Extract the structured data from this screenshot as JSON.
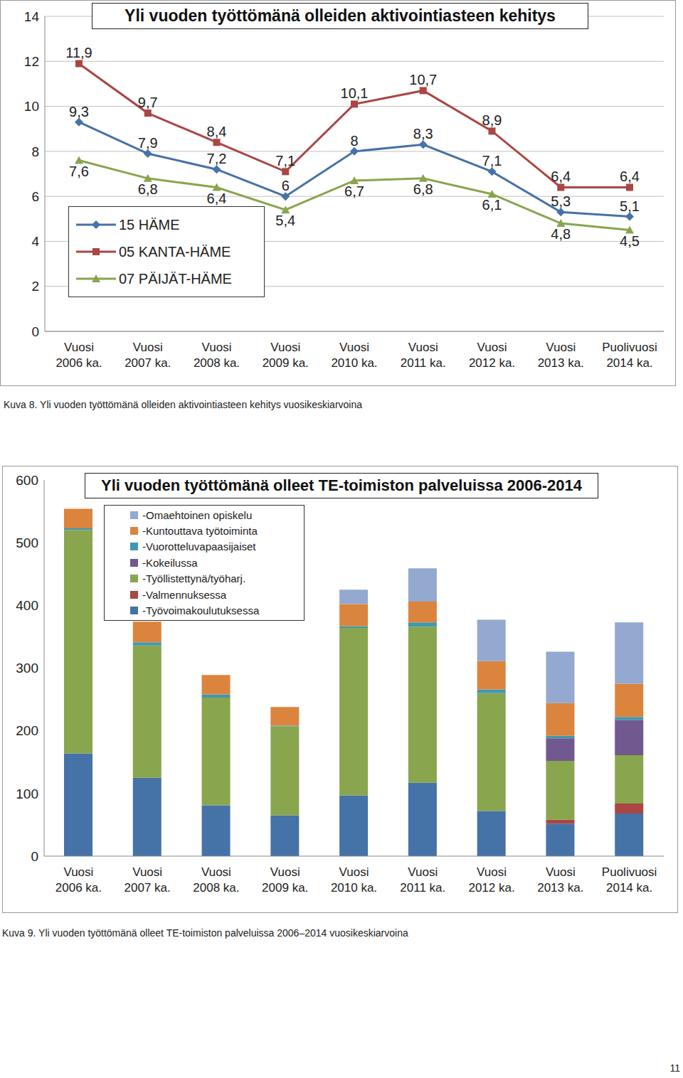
{
  "chart_data": [
    {
      "type": "line",
      "title": "Yli vuoden työttömänä olleiden aktivointiasteen kehitys",
      "caption": "Kuva 8. Yli vuoden työttömänä olleiden aktivointiasteen kehitys vuosikeskiarvoina",
      "categories": [
        "Vuosi 2006 ka.",
        "Vuosi 2007 ka.",
        "Vuosi 2008 ka.",
        "Vuosi 2009 ka.",
        "Vuosi 2010 ka.",
        "Vuosi 2011 ka.",
        "Vuosi 2012 ka.",
        "Vuosi 2013 ka.",
        "Puolivuosi 2014 ka."
      ],
      "series": [
        {
          "name": "15 HÄME",
          "color": "#4572A7",
          "marker": "diamond",
          "values": [
            9.3,
            7.9,
            7.2,
            6,
            8,
            8.3,
            7.1,
            5.3,
            5.1
          ],
          "value_labels": [
            "9,3",
            "7,9",
            "7,2",
            "6",
            "8",
            "8,3",
            "7,1",
            "5,3",
            "5,1"
          ]
        },
        {
          "name": "05 KANTA-HÄME",
          "color": "#AA4643",
          "marker": "square",
          "values": [
            11.9,
            9.7,
            8.4,
            7.1,
            10.1,
            10.7,
            8.9,
            6.4,
            6.4
          ],
          "value_labels": [
            "11,9",
            "9,7",
            "8,4",
            "7,1",
            "10,1",
            "10,7",
            "8,9",
            "6,4",
            "6,4"
          ]
        },
        {
          "name": "07 PÄIJÄT-HÄME",
          "color": "#89A54E",
          "marker": "triangle",
          "values": [
            7.6,
            6.8,
            6.4,
            5.4,
            6.7,
            6.8,
            6.1,
            4.8,
            4.5
          ],
          "value_labels": [
            "7,6",
            "6,8",
            "6,4",
            "5,4",
            "6,7",
            "6,8",
            "6,1",
            "4,8",
            "4,5"
          ]
        }
      ],
      "ylim": [
        0,
        14
      ],
      "yticks": [
        0,
        2,
        4,
        6,
        8,
        10,
        12,
        14
      ],
      "grid": true,
      "data_labels": true,
      "legend": "left"
    },
    {
      "type": "bar",
      "title": "Yli vuoden työttömänä olleet TE-toimiston palveluissa 2006-2014",
      "caption": "Kuva 9. Yli vuoden työttömänä olleet TE-toimiston palveluissa 2006–2014 vuosikeskiarvoina",
      "categories": [
        "Vuosi 2006 ka.",
        "Vuosi 2007 ka.",
        "Vuosi 2008 ka.",
        "Vuosi 2009 ka.",
        "Vuosi 2010 ka.",
        "Vuosi 2011 ka.",
        "Vuosi 2012 ka.",
        "Vuosi 2013 ka.",
        "Puolivuosi 2014 ka."
      ],
      "stacked": true,
      "grid": false,
      "legend": "upper left",
      "ylim": [
        0,
        600
      ],
      "yticks": [
        0,
        100,
        200,
        300,
        400,
        500,
        600
      ],
      "series": [
        {
          "name": "-Työvoimakoulutuksessa",
          "color": "#4572A7",
          "values": [
            164,
            125,
            81,
            65,
            97,
            117,
            72,
            52,
            68
          ]
        },
        {
          "name": "-Valmennuksessa",
          "color": "#AA4643",
          "values": [
            0,
            0,
            0,
            0,
            0,
            0,
            0,
            6,
            16
          ]
        },
        {
          "name": "-Työllistettynä/työharj.",
          "color": "#89A54E",
          "values": [
            356,
            211,
            172,
            142,
            267,
            249,
            188,
            94,
            77
          ]
        },
        {
          "name": "-Kokeilussa",
          "color": "#71588F",
          "values": [
            0,
            0,
            0,
            0,
            0,
            0,
            0,
            36,
            56
          ]
        },
        {
          "name": "-Vuorotteluvapaasijaiset",
          "color": "#4198AF",
          "values": [
            3,
            5,
            5,
            1,
            3,
            7,
            6,
            4,
            5
          ]
        },
        {
          "name": "-Kuntouttava työtoiminta",
          "color": "#DB843D",
          "values": [
            31,
            33,
            31,
            30,
            35,
            33,
            45,
            52,
            53
          ]
        },
        {
          "name": "-Omaehtoinen opiskelu",
          "color": "#93A9CF",
          "values": [
            0,
            0,
            0,
            0,
            23,
            53,
            66,
            82,
            98
          ]
        }
      ]
    }
  ],
  "page_number": "11"
}
